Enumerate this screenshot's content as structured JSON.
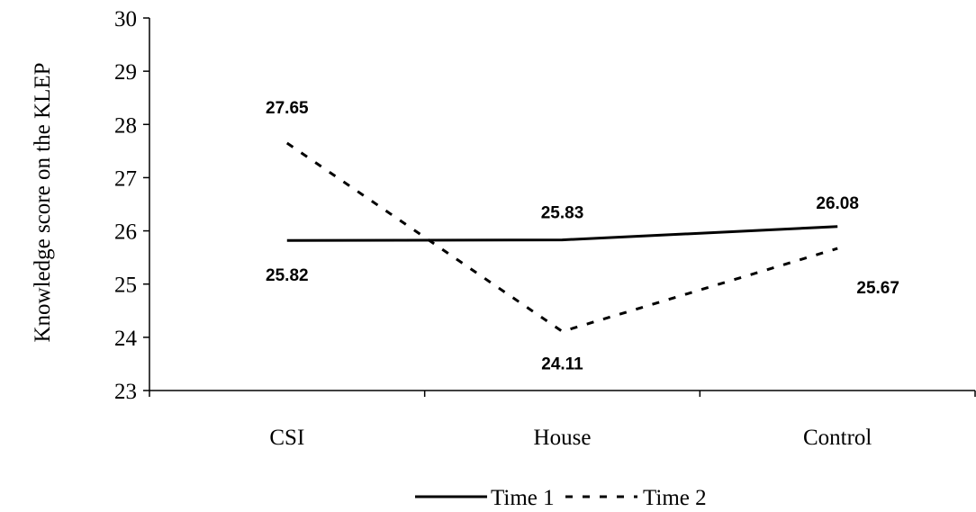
{
  "chart_data": {
    "type": "line",
    "categories": [
      "CSI",
      "House",
      "Control"
    ],
    "series": [
      {
        "name": "Time 1",
        "values": [
          25.82,
          25.83,
          26.08
        ],
        "style": "solid",
        "color": "#000000"
      },
      {
        "name": "Time 2",
        "values": [
          27.65,
          24.11,
          25.67
        ],
        "style": "dashed",
        "color": "#000000"
      }
    ],
    "data_labels": [
      [
        "25.82",
        "25.83",
        "26.08"
      ],
      [
        "27.65",
        "24.11",
        "25.67"
      ]
    ],
    "ylabel": "Knowledge score on the KLEP",
    "xlabel": "",
    "ylim": [
      23,
      30
    ],
    "yticks": [
      "23",
      "24",
      "25",
      "26",
      "27",
      "28",
      "29",
      "30"
    ],
    "grid": false,
    "legend_position": "bottom"
  }
}
